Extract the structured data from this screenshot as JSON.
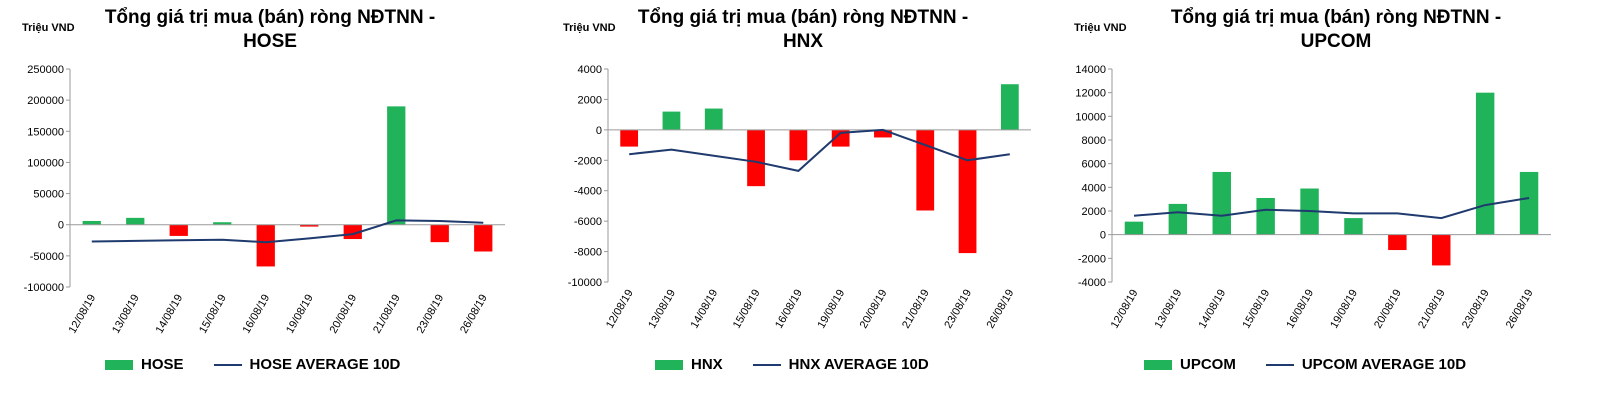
{
  "colors": {
    "positive": "#20b35a",
    "negative": "#ff0000",
    "average": "#1f3a6e",
    "axis": "#9a9a9a"
  },
  "chart_data": [
    {
      "type": "bar",
      "unit": "Triệu VND",
      "title_line1": "Tổng giá trị mua (bán) ròng NĐTNN -",
      "title_line2": "HOSE",
      "categories": [
        "12/08/19",
        "13/08/19",
        "14/08/19",
        "15/08/19",
        "16/08/19",
        "19/08/19",
        "20/08/19",
        "21/08/19",
        "23/08/19",
        "26/08/19"
      ],
      "ylim": [
        -100000,
        250000
      ],
      "yticks": [
        "250000",
        "200000",
        "150000",
        "100000",
        "50000",
        "0",
        "-50000",
        "-100000"
      ],
      "ytick_values": [
        250000,
        200000,
        150000,
        100000,
        50000,
        0,
        -50000,
        -100000
      ],
      "series": [
        {
          "name": "HOSE",
          "values": [
            6000,
            11000,
            -18000,
            4000,
            -67000,
            -3000,
            -23000,
            190000,
            -28000,
            -43000
          ]
        },
        {
          "name": "HOSE AVERAGE 10D",
          "values": [
            -27000,
            -26000,
            -25000,
            -24000,
            -28000,
            -22000,
            -15000,
            7000,
            6000,
            3000
          ]
        }
      ]
    },
    {
      "type": "bar",
      "unit": "Triệu VND",
      "title_line1": "Tổng giá trị mua (bán) ròng NĐTNN -",
      "title_line2": "HNX",
      "categories": [
        "12/08/19",
        "13/08/19",
        "14/08/19",
        "15/08/19",
        "16/08/19",
        "19/08/19",
        "20/08/19",
        "21/08/19",
        "23/08/19",
        "26/08/19"
      ],
      "ylim": [
        -10000,
        4000
      ],
      "yticks": [
        "4000",
        "2000",
        "0",
        "-2000",
        "-4000",
        "-6000",
        "-8000",
        "-10000"
      ],
      "ytick_values": [
        4000,
        2000,
        0,
        -2000,
        -4000,
        -6000,
        -8000,
        -10000
      ],
      "series": [
        {
          "name": "HNX",
          "values": [
            -1100,
            1200,
            1400,
            -3700,
            -2000,
            -1100,
            -500,
            -5300,
            -8100,
            3000
          ]
        },
        {
          "name": "HNX AVERAGE 10D",
          "values": [
            -1600,
            -1300,
            -1700,
            -2100,
            -2700,
            -200,
            0,
            -1000,
            -2000,
            -1600
          ]
        }
      ]
    },
    {
      "type": "bar",
      "unit": "Triệu VND",
      "title_line1": "Tổng giá trị mua (bán) ròng NĐTNN -",
      "title_line2": "UPCOM",
      "categories": [
        "12/08/19",
        "13/08/19",
        "14/08/19",
        "15/08/19",
        "16/08/19",
        "19/08/19",
        "20/08/19",
        "21/08/19",
        "23/08/19",
        "26/08/19"
      ],
      "ylim": [
        -4000,
        14000
      ],
      "yticks": [
        "14000",
        "12000",
        "10000",
        "8000",
        "6000",
        "4000",
        "2000",
        "0",
        "-2000",
        "-4000"
      ],
      "ytick_values": [
        14000,
        12000,
        10000,
        8000,
        6000,
        4000,
        2000,
        0,
        -2000,
        -4000
      ],
      "series": [
        {
          "name": "UPCOM",
          "values": [
            1100,
            2600,
            5300,
            3100,
            3900,
            1400,
            -1300,
            -2600,
            12000,
            5300
          ]
        },
        {
          "name": "UPCOM AVERAGE 10D",
          "values": [
            1600,
            1900,
            1600,
            2100,
            2000,
            1800,
            1800,
            1400,
            2500,
            3100
          ]
        }
      ]
    }
  ]
}
